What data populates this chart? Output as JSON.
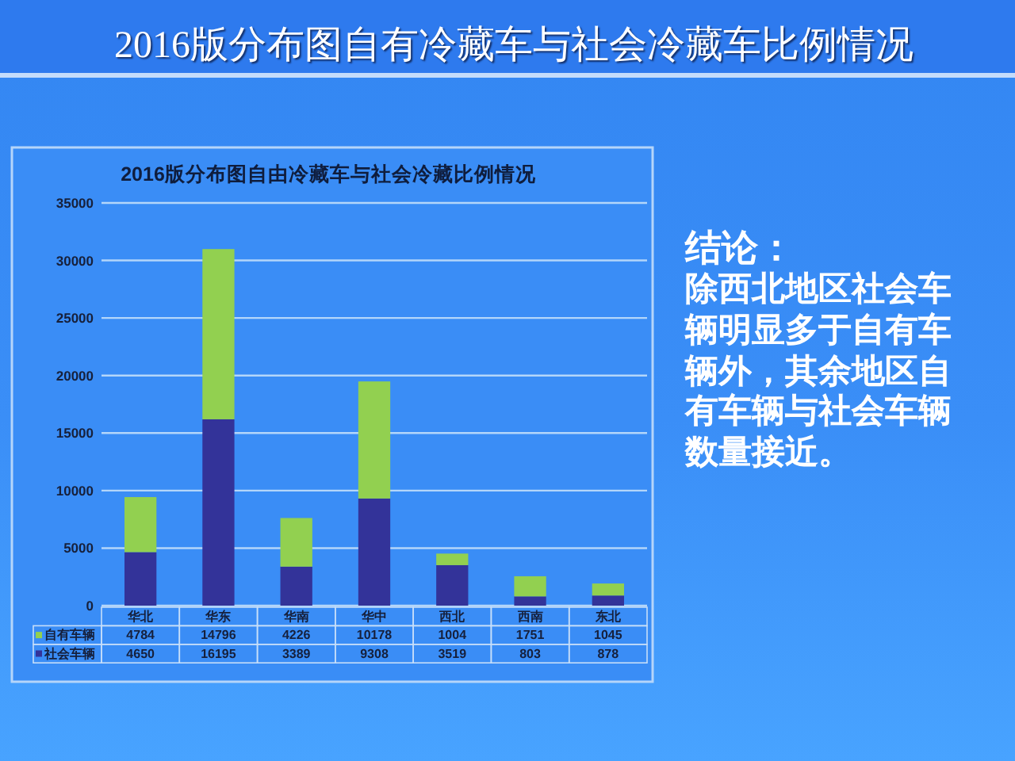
{
  "chart_data": {
    "type": "bar",
    "title": "2016版分布图自有冷藏车与社会冷藏车比例情况",
    "subtitle": "2016版分布图自由冷藏车与社会冷藏比例情况",
    "categories": [
      "华北",
      "华东",
      "华南",
      "华中",
      "西北",
      "西南",
      "东北"
    ],
    "series": [
      {
        "name": "社会车辆",
        "color": "#333399",
        "values": [
          4650,
          16195,
          3389,
          9308,
          3519,
          803,
          878
        ]
      },
      {
        "name": "自有车辆",
        "color": "#92d050",
        "values": [
          4784,
          14796,
          4226,
          10178,
          1004,
          1751,
          1045
        ]
      }
    ],
    "stacked": true,
    "ylim": [
      0,
      35000
    ],
    "yticks": [
      0,
      5000,
      10000,
      15000,
      20000,
      25000,
      30000,
      35000
    ],
    "grid": "y",
    "legend": "bottom left",
    "data_labels": true,
    "annotations": [
      "结论：",
      "除西北地区社会车辆明显多于自有车辆外，其余地区自有车辆与社会车辆数量接近。"
    ]
  }
}
